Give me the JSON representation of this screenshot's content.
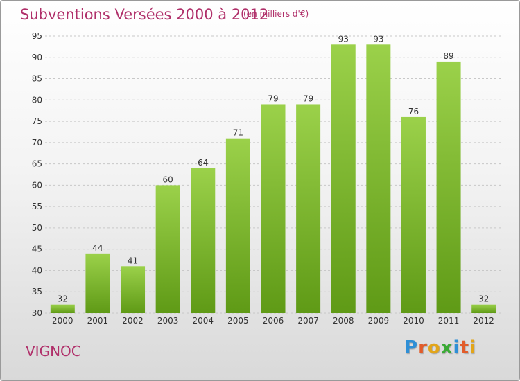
{
  "header": {
    "title": "Subventions Versées 2000 à 2012",
    "unit": "(en milliers d'€)"
  },
  "footer": {
    "commune": "VIGNOC",
    "logo_letters": [
      "P",
      "r",
      "o",
      "x",
      "i",
      "t",
      "i"
    ],
    "logo_colors": [
      "#2e8fd6",
      "#e25c2a",
      "#e2a51a",
      "#3aaa35",
      "#2e8fd6",
      "#e25c2a",
      "#e2a51a"
    ]
  },
  "colors": {
    "text_accent": "#b0306a",
    "bar_top": "#9bd14a",
    "bar_bottom": "#5f9a16",
    "grid": "#c8c8c8",
    "axis_text": "#333333"
  },
  "chart_data": {
    "type": "bar",
    "categories": [
      "2000",
      "2001",
      "2002",
      "2003",
      "2004",
      "2005",
      "2006",
      "2007",
      "2008",
      "2009",
      "2010",
      "2011",
      "2012"
    ],
    "values": [
      32,
      44,
      41,
      60,
      64,
      71,
      79,
      79,
      93,
      93,
      76,
      89,
      32
    ],
    "title": "Subventions Versées 2000 à 2012",
    "ylim": [
      30,
      95
    ],
    "yticks": [
      30,
      35,
      40,
      45,
      50,
      55,
      60,
      65,
      70,
      75,
      80,
      85,
      90,
      95
    ],
    "grid": "horizontal dashed",
    "data_labels": true
  }
}
